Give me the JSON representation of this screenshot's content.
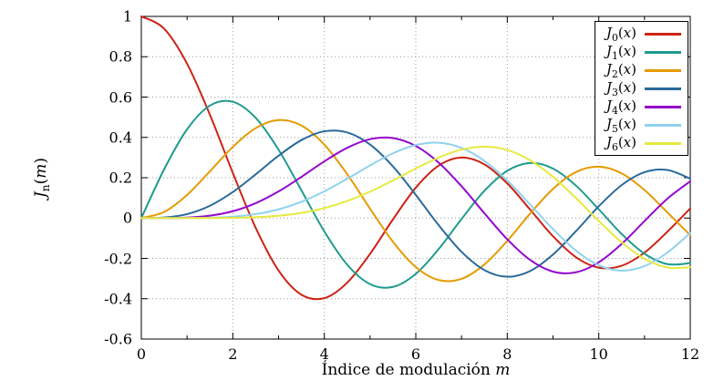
{
  "chart_data": {
    "type": "line",
    "title": "",
    "xlabel": {
      "text": "Índice de modulación",
      "var": "m"
    },
    "ylabel": {
      "base": "J",
      "sub": "n",
      "open": "(",
      "var": "m",
      "close": ")"
    },
    "xlim": [
      0,
      12
    ],
    "ylim": [
      -0.6,
      1
    ],
    "grid": "dotted",
    "grid_color": "#9a9a9a",
    "axis_color": "#000000",
    "legend_position": "top-right",
    "xtick_values": [
      0,
      2,
      4,
      6,
      8,
      10,
      12
    ],
    "xtick_labels": [
      "0",
      "2",
      "4",
      "6",
      "8",
      "10",
      "12"
    ],
    "minor_xticks": [
      1,
      3,
      5,
      7,
      9,
      11
    ],
    "ytick_values": [
      1,
      0.8,
      0.6,
      0.4,
      0.2,
      0,
      -0.2,
      -0.4,
      -0.6
    ],
    "ytick_labels": [
      "1",
      "0.8",
      "0.6",
      "0.4",
      "0.2",
      "0",
      "-0.2",
      "-0.4",
      "-0.6"
    ],
    "x": [
      0,
      0.5,
      1,
      1.5,
      2,
      2.5,
      3,
      3.5,
      4,
      4.5,
      5,
      5.5,
      6,
      6.5,
      7,
      7.5,
      8,
      8.5,
      9,
      9.5,
      10,
      10.5,
      11,
      11.5,
      12
    ],
    "series": [
      {
        "name": "J0(x)",
        "label": {
          "base": "J",
          "sub": "0",
          "open": "(",
          "var": "x",
          "close": ")"
        },
        "color": "#cc2315",
        "values": [
          1,
          0.9385,
          0.7652,
          0.5118,
          0.2239,
          -0.0484,
          -0.2601,
          -0.3801,
          -0.3971,
          -0.3205,
          -0.1776,
          -0.0068,
          0.1506,
          0.2601,
          0.3001,
          0.2663,
          0.1717,
          0.0419,
          -0.0903,
          -0.1939,
          -0.2459,
          -0.2366,
          -0.1712,
          -0.0677,
          0.0477
        ]
      },
      {
        "name": "J1(x)",
        "label": {
          "base": "J",
          "sub": "1",
          "open": "(",
          "var": "x",
          "close": ")"
        },
        "color": "#1e9b8f",
        "values": [
          0,
          0.2423,
          0.4401,
          0.5579,
          0.5767,
          0.4971,
          0.3391,
          0.1374,
          -0.066,
          -0.2311,
          -0.3276,
          -0.3414,
          -0.2767,
          -0.1538,
          -0.0047,
          0.1352,
          0.2346,
          0.2731,
          0.2453,
          0.1613,
          0.0435,
          -0.0789,
          -0.1768,
          -0.2284,
          -0.2234
        ]
      },
      {
        "name": "J2(x)",
        "label": {
          "base": "J",
          "sub": "2",
          "open": "(",
          "var": "x",
          "close": ")"
        },
        "color": "#e69b00",
        "values": [
          0,
          0.0306,
          0.1149,
          0.2321,
          0.3528,
          0.4461,
          0.4861,
          0.4586,
          0.3641,
          0.2178,
          0.0466,
          -0.1173,
          -0.2429,
          -0.3074,
          -0.3014,
          -0.2303,
          -0.113,
          0.0223,
          0.1448,
          0.2279,
          0.2546,
          0.2216,
          0.139,
          0.028,
          -0.0849
        ]
      },
      {
        "name": "J3(x)",
        "label": {
          "base": "J",
          "sub": "3",
          "open": "(",
          "var": "x",
          "close": ")"
        },
        "color": "#2b6a9b",
        "values": [
          0,
          0.0026,
          0.0196,
          0.061,
          0.1289,
          0.2166,
          0.3091,
          0.3867,
          0.4302,
          0.4247,
          0.3648,
          0.2561,
          0.1148,
          -0.0353,
          -0.1676,
          -0.2581,
          -0.2911,
          -0.2626,
          -0.1809,
          -0.0653,
          0.0584,
          0.1633,
          0.2273,
          0.2382,
          0.1951
        ]
      },
      {
        "name": "J4(x)",
        "label": {
          "base": "J",
          "sub": "4",
          "open": "(",
          "var": "x",
          "close": ")"
        },
        "color": "#9408cc",
        "values": [
          0,
          0.0002,
          0.0025,
          0.0118,
          0.034,
          0.0738,
          0.132,
          0.2044,
          0.2811,
          0.3484,
          0.3912,
          0.3967,
          0.3576,
          0.2748,
          0.1578,
          0.0238,
          -0.1054,
          -0.2077,
          -0.2655,
          -0.2691,
          -0.2196,
          -0.1283,
          -0.015,
          0.0963,
          0.1825
        ]
      },
      {
        "name": "J5(x)",
        "label": {
          "base": "J",
          "sub": "5",
          "open": "(",
          "var": "x",
          "close": ")"
        },
        "color": "#90d2ee",
        "values": [
          0,
          0,
          0.0002,
          0.0018,
          0.007,
          0.0195,
          0.043,
          0.0805,
          0.1321,
          0.1947,
          0.2611,
          0.3209,
          0.3621,
          0.3735,
          0.3479,
          0.2835,
          0.1858,
          0.0671,
          -0.055,
          -0.1613,
          -0.2341,
          -0.261,
          -0.2383,
          -0.1712,
          -0.0735
        ]
      },
      {
        "name": "J6(x)",
        "label": {
          "base": "J",
          "sub": "6",
          "open": "(",
          "var": "x",
          "close": ")"
        },
        "color": "#e7e940",
        "values": [
          0,
          0,
          0,
          0.0002,
          0.0012,
          0.0042,
          0.0114,
          0.0256,
          0.0491,
          0.0843,
          0.131,
          0.1868,
          0.2458,
          0.2999,
          0.3392,
          0.3542,
          0.3376,
          0.2866,
          0.2043,
          0.0993,
          -0.0145,
          -0.1203,
          -0.2016,
          -0.2452,
          -0.2437
        ]
      }
    ]
  }
}
